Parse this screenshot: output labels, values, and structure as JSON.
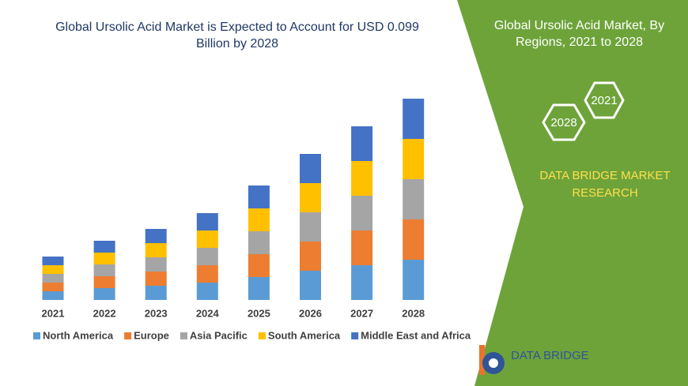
{
  "chart_data": {
    "type": "stacked-bar",
    "title": "Global Ursolic Acid Market is Expected to Account for USD 0.099 Billion by 2028",
    "categories": [
      "2021",
      "2022",
      "2023",
      "2024",
      "2025",
      "2026",
      "2027",
      "2028"
    ],
    "series": [
      {
        "name": "North America",
        "color": "#5b9bd5",
        "values": [
          11,
          15,
          18,
          22,
          29,
          37,
          44,
          51
        ]
      },
      {
        "name": "Europe",
        "color": "#ed7d31",
        "values": [
          11,
          15,
          18,
          22,
          29,
          37,
          44,
          51
        ]
      },
      {
        "name": "Asia Pacific",
        "color": "#a5a5a5",
        "values": [
          11,
          15,
          18,
          22,
          29,
          37,
          44,
          51
        ]
      },
      {
        "name": "South America",
        "color": "#ffc000",
        "values": [
          11,
          15,
          18,
          22,
          29,
          37,
          44,
          51
        ]
      },
      {
        "name": "Middle East and Africa",
        "color": "#4472c4",
        "values": [
          11,
          15,
          18,
          22,
          29,
          37,
          44,
          51
        ]
      }
    ]
  },
  "panel": {
    "title": "Global Ursolic Acid Market, By Regions, 2021 to 2028",
    "hexagons": [
      "2021",
      "2028"
    ],
    "brand": "DATA BRIDGE MARKET RESEARCH"
  },
  "logo": {
    "text": "DATA BRIDGE"
  }
}
